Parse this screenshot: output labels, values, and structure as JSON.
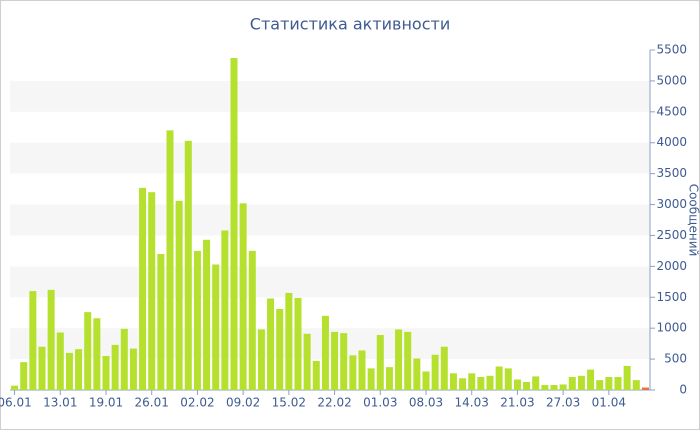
{
  "chart_data": {
    "type": "bar",
    "title": "Статистика активности",
    "y_axis_label": "Сообщений",
    "categories": [
      "06.01",
      null,
      null,
      null,
      null,
      "13.01",
      null,
      null,
      null,
      null,
      "19.01",
      null,
      null,
      null,
      null,
      "26.01",
      null,
      null,
      null,
      null,
      "02.02",
      null,
      null,
      null,
      null,
      "09.02",
      null,
      null,
      null,
      null,
      "15.02",
      null,
      null,
      null,
      null,
      "22.02",
      null,
      null,
      null,
      null,
      "01.03",
      null,
      null,
      null,
      null,
      "08.03",
      null,
      null,
      null,
      null,
      "14.03",
      null,
      null,
      null,
      null,
      "21.03",
      null,
      null,
      null,
      null,
      "27.03",
      null,
      null,
      null,
      null,
      "01.04",
      null,
      null,
      null,
      null
    ],
    "values": [
      70,
      450,
      1600,
      700,
      1620,
      930,
      600,
      660,
      1260,
      1160,
      550,
      730,
      990,
      670,
      3270,
      3200,
      2200,
      4200,
      3060,
      4030,
      2250,
      2430,
      2030,
      2580,
      5370,
      3020,
      2250,
      980,
      1480,
      1310,
      1570,
      1490,
      910,
      470,
      1200,
      940,
      920,
      560,
      640,
      350,
      890,
      370,
      980,
      940,
      510,
      300,
      570,
      700,
      270,
      190,
      270,
      210,
      230,
      380,
      350,
      170,
      130,
      220,
      80,
      80,
      90,
      210,
      230,
      330,
      160,
      210,
      210,
      390,
      160,
      40
    ],
    "color": "#b5e02e",
    "last_bar_color": "#e8743b",
    "band_color": "#f6f6f6",
    "ylim": [
      0,
      5500
    ],
    "yticks": [
      0,
      500,
      1000,
      1500,
      2000,
      2500,
      3000,
      3500,
      4000,
      4500,
      5000,
      5500
    ],
    "y_axis_side": "right",
    "grid": "bands"
  }
}
